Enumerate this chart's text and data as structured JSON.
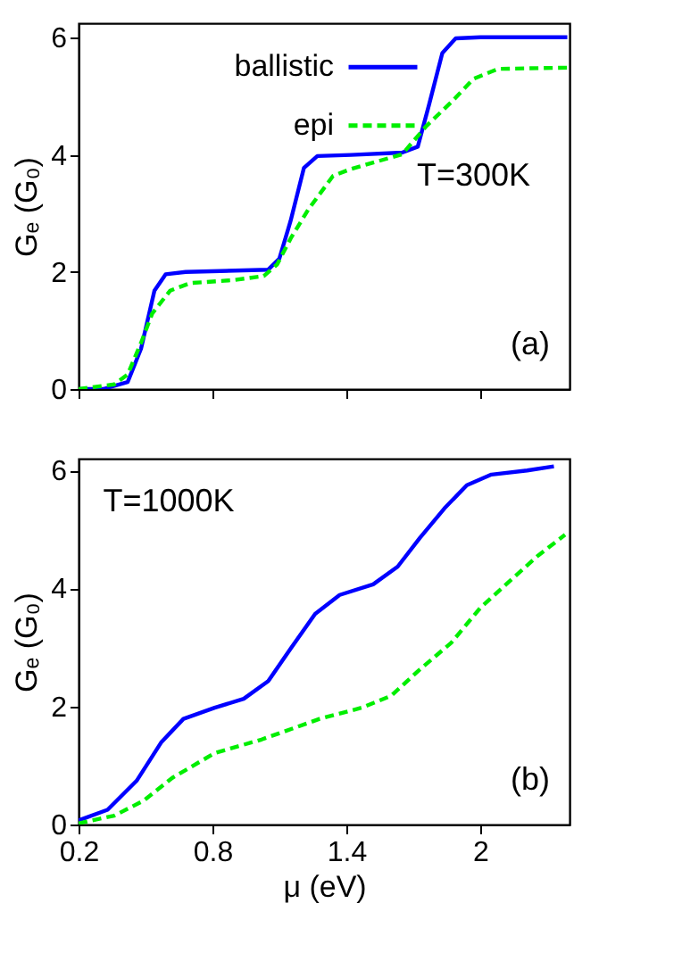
{
  "chart_data": [
    {
      "type": "line",
      "ylabel": "Gₑ (G₀)",
      "xlim": [
        0.2,
        2.4
      ],
      "ylim": [
        0,
        6.25
      ],
      "yticks": [
        0,
        2,
        4,
        6
      ],
      "xticks": [
        {
          "value": 0.2,
          "label": null
        },
        {
          "value": 0.8,
          "label": null
        },
        {
          "value": 1.4,
          "label": null
        },
        {
          "value": 2,
          "label": null
        }
      ],
      "tick_labels": "y",
      "legend": "top right",
      "grid": false,
      "annotations": [
        "T=300K",
        "(a)"
      ],
      "series": [
        {
          "name": "ballistic",
          "color": "#0000ff",
          "line_style": "solid",
          "x": [
            0.2,
            0.31,
            0.42,
            0.48,
            0.54,
            0.59,
            0.68,
            1.05,
            1.1,
            1.15,
            1.21,
            1.27,
            1.42,
            1.65,
            1.72,
            1.77,
            1.83,
            1.89,
            2.0,
            2.39
          ],
          "values": [
            0,
            0,
            0.12,
            0.69,
            1.68,
            1.96,
            2,
            2.04,
            2.23,
            2.87,
            3.78,
            3.98,
            4.0,
            4.04,
            4.14,
            4.85,
            5.74,
            5.99,
            6.01,
            6.01
          ]
        },
        {
          "name": "epi",
          "color": "#00ee00",
          "line_style": "dashed",
          "x": [
            0.2,
            0.36,
            0.42,
            0.48,
            0.53,
            0.61,
            0.7,
            0.89,
            1.03,
            1.09,
            1.15,
            1.23,
            1.34,
            1.42,
            1.65,
            1.76,
            1.87,
            1.97,
            2.08,
            2.39
          ],
          "values": [
            0,
            0.08,
            0.25,
            0.79,
            1.29,
            1.68,
            1.81,
            1.86,
            1.93,
            2.13,
            2.57,
            3.07,
            3.64,
            3.76,
            4.01,
            4.5,
            4.9,
            5.3,
            5.47,
            5.49
          ]
        }
      ]
    },
    {
      "type": "line",
      "ylabel": "Gₑ (G₀)",
      "xlabel": "μ (eV)",
      "xlim": [
        0.2,
        2.4
      ],
      "ylim": [
        0,
        6.2
      ],
      "yticks": [
        0,
        2,
        4,
        6
      ],
      "xticks": [
        0.2,
        0.8,
        1.4,
        2
      ],
      "legend": false,
      "grid": false,
      "annotations": [
        "T=1000K",
        "(b)"
      ],
      "series": [
        {
          "color": "#0000ff",
          "line_style": "solid",
          "x": [
            0.2,
            0.33,
            0.46,
            0.57,
            0.67,
            0.81,
            0.94,
            1.05,
            1.15,
            1.26,
            1.37,
            1.52,
            1.63,
            1.73,
            1.84,
            1.94,
            2.05,
            2.21,
            2.33
          ],
          "values": [
            0.07,
            0.25,
            0.74,
            1.39,
            1.79,
            1.98,
            2.13,
            2.43,
            2.98,
            3.57,
            3.89,
            4.07,
            4.37,
            4.86,
            5.36,
            5.75,
            5.93,
            6.0,
            6.07
          ]
        },
        {
          "color": "#00ee00",
          "line_style": "dashed",
          "x": [
            0.2,
            0.36,
            0.49,
            0.62,
            0.81,
            1.02,
            1.28,
            1.47,
            1.6,
            1.73,
            1.87,
            2.0,
            2.13,
            2.26,
            2.38
          ],
          "values": [
            0.02,
            0.15,
            0.4,
            0.79,
            1.21,
            1.44,
            1.79,
            1.98,
            2.18,
            2.63,
            3.08,
            3.67,
            4.12,
            4.56,
            4.91
          ]
        }
      ]
    }
  ]
}
